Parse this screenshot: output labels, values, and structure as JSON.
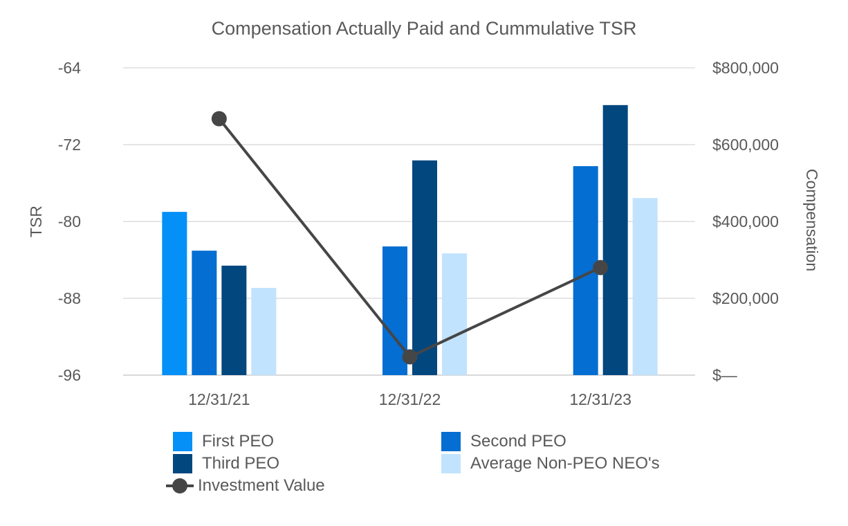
{
  "chart_data": {
    "type": "bar",
    "title": "Compensation Actually Paid and Cummulative TSR",
    "categories": [
      "12/31/21",
      "12/31/22",
      "12/31/23"
    ],
    "y_left": {
      "label": "TSR",
      "range": [
        -96,
        -64
      ],
      "ticks": [
        "-64",
        "-72",
        "-80",
        "-88",
        "-96"
      ],
      "tick_values": [
        -64,
        -72,
        -80,
        -88,
        -96
      ]
    },
    "y_right": {
      "label": "Compensation",
      "range": [
        0,
        800000
      ],
      "ticks": [
        "$800,000",
        "$600,000",
        "$400,000",
        "$200,000",
        "$—"
      ],
      "tick_values": [
        800000,
        600000,
        400000,
        200000,
        0
      ]
    },
    "grid": true,
    "legend_position": "bottom",
    "series": [
      {
        "name": "First PEO",
        "type": "bar",
        "axis": "right",
        "color": "#0590f8",
        "values": [
          425000,
          null,
          null
        ]
      },
      {
        "name": "Second PEO",
        "type": "bar",
        "axis": "right",
        "color": "#046ed2",
        "values": [
          324000,
          335000,
          544000
        ]
      },
      {
        "name": "Third PEO",
        "type": "bar",
        "axis": "right",
        "color": "#03477f",
        "values": [
          285000,
          559000,
          703000
        ]
      },
      {
        "name": "Average Non-PEO NEO's",
        "type": "bar",
        "axis": "right",
        "color": "#c2e3fd",
        "values": [
          227000,
          317000,
          461000
        ]
      },
      {
        "name": "Investment Value",
        "type": "line",
        "axis": "left",
        "color": "#464646",
        "values": [
          -69.3,
          -94.1,
          -84.8
        ]
      }
    ]
  }
}
